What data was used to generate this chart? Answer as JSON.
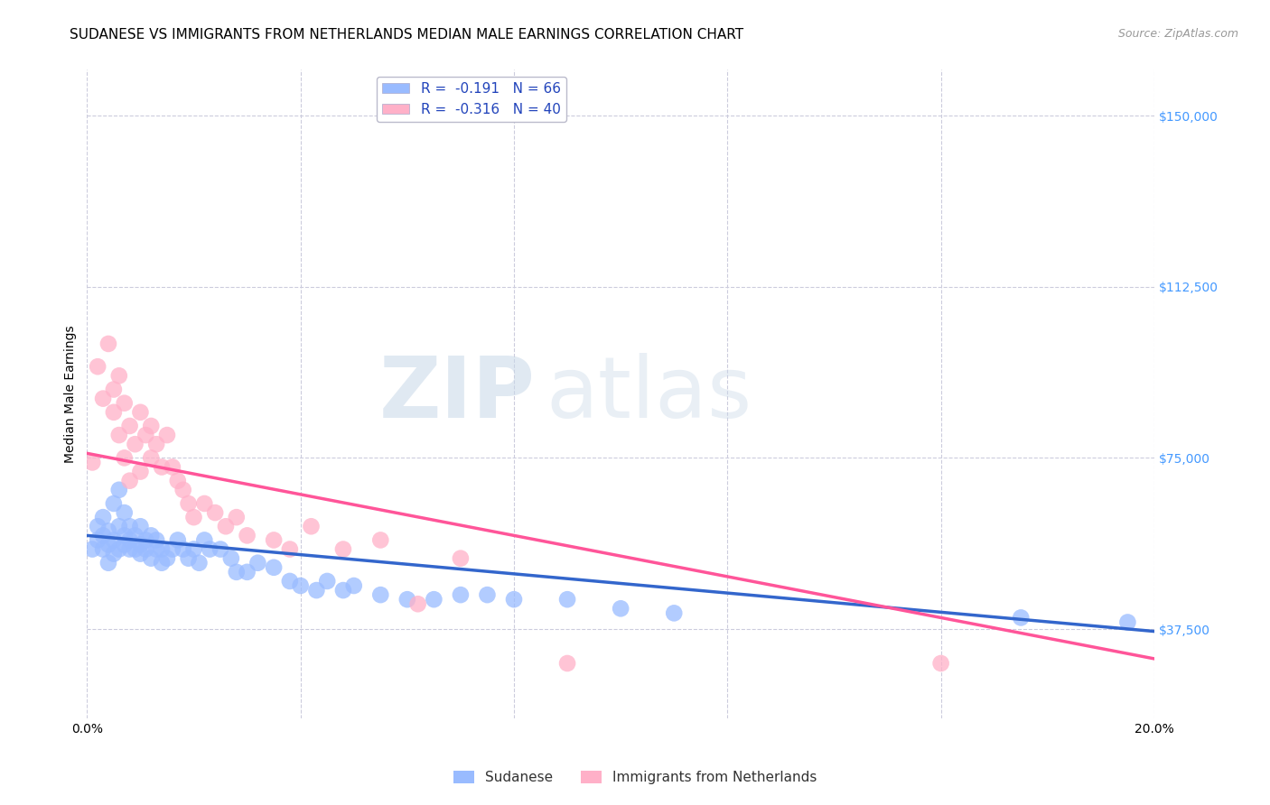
{
  "title": "SUDANESE VS IMMIGRANTS FROM NETHERLANDS MEDIAN MALE EARNINGS CORRELATION CHART",
  "source": "Source: ZipAtlas.com",
  "ylabel": "Median Male Earnings",
  "xlim": [
    0.0,
    0.2
  ],
  "ylim": [
    18000,
    160000
  ],
  "yticks": [
    37500,
    75000,
    112500,
    150000
  ],
  "ytick_labels": [
    "$37,500",
    "$75,000",
    "$112,500",
    "$150,000"
  ],
  "xticks": [
    0.0,
    0.04,
    0.08,
    0.12,
    0.16,
    0.2
  ],
  "xtick_labels": [
    "0.0%",
    "",
    "",
    "",
    "",
    "20.0%"
  ],
  "blue_R": -0.191,
  "blue_N": 66,
  "pink_R": -0.316,
  "pink_N": 40,
  "blue_color": "#99BBFF",
  "pink_color": "#FFB0C8",
  "blue_line_color": "#3366CC",
  "pink_line_color": "#FF5599",
  "background_color": "#FFFFFF",
  "grid_color": "#CCCCDD",
  "watermark_zip": "ZIP",
  "watermark_atlas": "atlas",
  "legend_label_blue": "Sudanese",
  "legend_label_pink": "Immigrants from Netherlands",
  "blue_scatter_x": [
    0.001,
    0.002,
    0.002,
    0.003,
    0.003,
    0.003,
    0.004,
    0.004,
    0.004,
    0.005,
    0.005,
    0.005,
    0.006,
    0.006,
    0.006,
    0.007,
    0.007,
    0.007,
    0.008,
    0.008,
    0.008,
    0.009,
    0.009,
    0.01,
    0.01,
    0.01,
    0.011,
    0.011,
    0.012,
    0.012,
    0.013,
    0.013,
    0.014,
    0.014,
    0.015,
    0.016,
    0.017,
    0.018,
    0.019,
    0.02,
    0.021,
    0.022,
    0.023,
    0.025,
    0.027,
    0.028,
    0.03,
    0.032,
    0.035,
    0.038,
    0.04,
    0.043,
    0.045,
    0.048,
    0.05,
    0.055,
    0.06,
    0.065,
    0.07,
    0.075,
    0.08,
    0.09,
    0.1,
    0.11,
    0.175,
    0.195
  ],
  "blue_scatter_y": [
    55000,
    60000,
    57000,
    58000,
    55000,
    62000,
    56000,
    59000,
    52000,
    57000,
    54000,
    65000,
    60000,
    55000,
    68000,
    58000,
    56000,
    63000,
    57000,
    60000,
    55000,
    55000,
    58000,
    56000,
    54000,
    60000,
    55000,
    57000,
    53000,
    58000,
    55000,
    57000,
    52000,
    55000,
    53000,
    55000,
    57000,
    55000,
    53000,
    55000,
    52000,
    57000,
    55000,
    55000,
    53000,
    50000,
    50000,
    52000,
    51000,
    48000,
    47000,
    46000,
    48000,
    46000,
    47000,
    45000,
    44000,
    44000,
    45000,
    45000,
    44000,
    44000,
    42000,
    41000,
    40000,
    39000
  ],
  "pink_scatter_x": [
    0.001,
    0.002,
    0.003,
    0.004,
    0.005,
    0.005,
    0.006,
    0.006,
    0.007,
    0.007,
    0.008,
    0.008,
    0.009,
    0.01,
    0.01,
    0.011,
    0.012,
    0.012,
    0.013,
    0.014,
    0.015,
    0.016,
    0.017,
    0.018,
    0.019,
    0.02,
    0.022,
    0.024,
    0.026,
    0.028,
    0.03,
    0.035,
    0.038,
    0.042,
    0.048,
    0.055,
    0.062,
    0.07,
    0.09,
    0.16
  ],
  "pink_scatter_y": [
    74000,
    95000,
    88000,
    100000,
    90000,
    85000,
    93000,
    80000,
    87000,
    75000,
    82000,
    70000,
    78000,
    85000,
    72000,
    80000,
    75000,
    82000,
    78000,
    73000,
    80000,
    73000,
    70000,
    68000,
    65000,
    62000,
    65000,
    63000,
    60000,
    62000,
    58000,
    57000,
    55000,
    60000,
    55000,
    57000,
    43000,
    53000,
    30000,
    30000
  ],
  "title_fontsize": 11,
  "axis_label_fontsize": 10,
  "tick_fontsize": 10,
  "legend_fontsize": 11
}
